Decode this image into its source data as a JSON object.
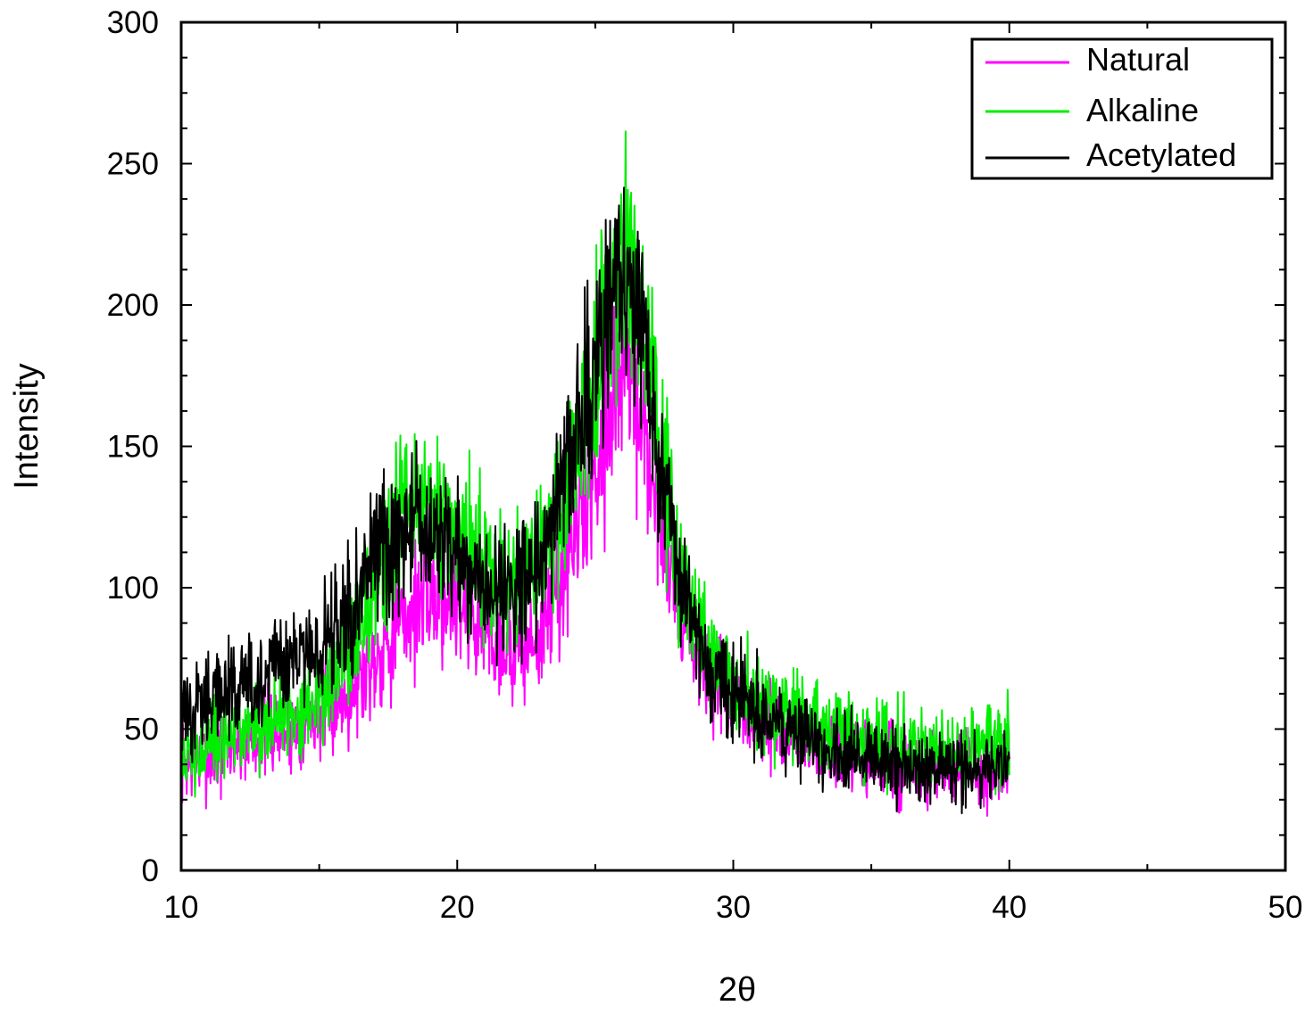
{
  "chart_data": {
    "type": "line",
    "xlabel": "2θ",
    "ylabel": "Intensity",
    "xlim": [
      10,
      50
    ],
    "ylim": [
      0,
      300
    ],
    "x_ticks": [
      "10",
      "20",
      "30",
      "40",
      "50"
    ],
    "y_ticks": [
      "0",
      "50",
      "100",
      "150",
      "200",
      "250",
      "300"
    ],
    "legend_position": "top-right",
    "grid": false,
    "x": [
      10,
      11,
      12,
      13,
      14,
      15,
      16,
      17,
      18,
      19,
      20,
      21,
      22,
      23,
      24,
      25,
      25.5,
      26,
      26.5,
      27,
      27.5,
      28,
      29,
      30,
      31,
      32,
      33,
      34,
      35,
      36,
      37,
      38,
      39,
      40
    ],
    "series": [
      {
        "name": "Natural",
        "color": "#ff00ff",
        "values": [
          38,
          40,
          45,
          48,
          50,
          56,
          62,
          75,
          88,
          98,
          95,
          85,
          78,
          82,
          110,
          140,
          165,
          180,
          170,
          140,
          120,
          95,
          70,
          58,
          52,
          48,
          45,
          40,
          38,
          36,
          35,
          34,
          35,
          36
        ]
      },
      {
        "name": "Alkaline",
        "color": "#00ee00",
        "values": [
          38,
          42,
          48,
          52,
          56,
          62,
          75,
          100,
          125,
          128,
          118,
          108,
          100,
          108,
          140,
          180,
          205,
          220,
          210,
          175,
          140,
          105,
          78,
          66,
          60,
          56,
          52,
          48,
          46,
          44,
          42,
          42,
          44,
          48
        ]
      },
      {
        "name": "Acetylated",
        "color": "#000000",
        "values": [
          55,
          60,
          64,
          68,
          72,
          78,
          92,
          110,
          122,
          120,
          112,
          104,
          100,
          110,
          140,
          178,
          198,
          210,
          200,
          168,
          135,
          102,
          74,
          62,
          55,
          50,
          46,
          42,
          40,
          38,
          36,
          35,
          36,
          38
        ]
      }
    ]
  }
}
